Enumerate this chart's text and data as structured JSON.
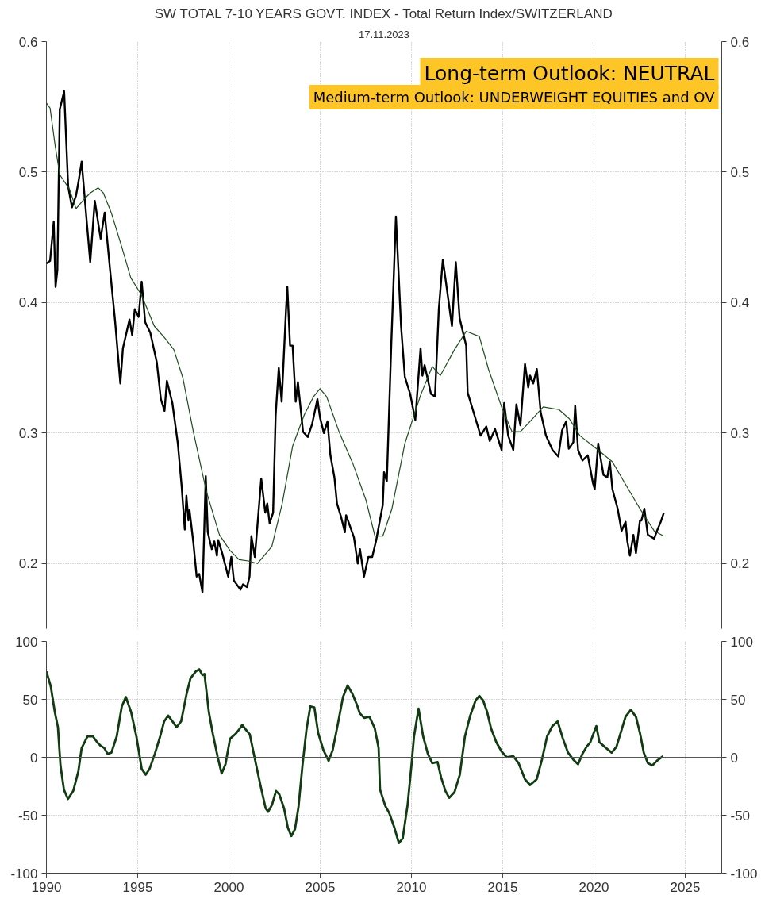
{
  "chart_data": [
    {
      "type": "line",
      "title": "SW TOTAL 7-10 YEARS GOVT. INDEX - Total Return Index/SWITZERLAND",
      "subtitle": "17.11.2023",
      "annotations": [
        "Long-term Outlook: NEUTRAL",
        "Medium-term Outlook: UNDERWEIGHT EQUITIES and OV"
      ],
      "xlim": [
        1990,
        2027
      ],
      "xticks": [
        1990,
        1995,
        2000,
        2005,
        2010,
        2015,
        2020,
        2025
      ],
      "ylim": [
        0.15,
        0.6
      ],
      "yticks": [
        0.2,
        0.3,
        0.4,
        0.5,
        0.6
      ],
      "y2lim": [
        0.15,
        0.6
      ],
      "y2ticks": [
        0.2,
        0.3,
        0.4,
        0.5,
        0.6
      ],
      "grid": true,
      "tick_labels": "y",
      "series": [
        {
          "color": "#000000",
          "x": [
            1990.0,
            1990.2,
            1990.4,
            1990.5,
            1990.6,
            1990.73,
            1990.97,
            1991.19,
            1991.4,
            1991.62,
            1991.76,
            1991.93,
            1992.19,
            1992.4,
            1992.65,
            1992.97,
            1993.19,
            1993.48,
            1993.76,
            1994.05,
            1994.19,
            1994.55,
            1994.7,
            1994.84,
            1995.05,
            1995.22,
            1995.41,
            1995.69,
            1996.05,
            1996.27,
            1996.47,
            1996.6,
            1996.9,
            1997.2,
            1997.41,
            1997.58,
            1997.67,
            1997.78,
            1997.84,
            1998.05,
            1998.23,
            1998.37,
            1998.55,
            1998.73,
            1998.84,
            1999.06,
            1999.2,
            1999.34,
            1999.41,
            1999.63,
            1999.96,
            2000.13,
            2000.27,
            2000.63,
            2000.77,
            2000.99,
            2001.13,
            2001.23,
            2001.42,
            2001.77,
            2001.99,
            2002.1,
            2002.23,
            2002.42,
            2002.56,
            2002.73,
            2002.89,
            2003.13,
            2003.2,
            2003.35,
            2003.49,
            2003.66,
            2003.78,
            2004.06,
            2004.32,
            2004.56,
            2004.85,
            2004.99,
            2005.2,
            2005.4,
            2005.56,
            2005.78,
            2005.92,
            2006.14,
            2006.35,
            2006.42,
            2006.85,
            2007.06,
            2007.18,
            2007.4,
            2007.64,
            2007.85,
            2008.07,
            2008.43,
            2008.5,
            2008.65,
            2008.9,
            2009.15,
            2009.43,
            2009.64,
            2009.93,
            2010.21,
            2010.5,
            2010.6,
            2010.72,
            2011.07,
            2011.29,
            2011.5,
            2011.72,
            2012.22,
            2012.43,
            2012.64,
            2013.0,
            2013.08,
            2013.36,
            2013.79,
            2014.1,
            2014.29,
            2014.58,
            2014.94,
            2015.08,
            2015.3,
            2015.58,
            2015.75,
            2015.97,
            2016.22,
            2016.4,
            2016.5,
            2016.67,
            2016.87,
            2017.08,
            2017.37,
            2017.73,
            2018.05,
            2018.25,
            2018.48,
            2018.62,
            2018.87,
            2018.97,
            2019.13,
            2019.37,
            2019.66,
            2019.94,
            2020.04,
            2020.23,
            2020.52,
            2020.73,
            2020.87,
            2021.01,
            2021.3,
            2021.51,
            2021.73,
            2021.83,
            2021.97,
            2022.16,
            2022.3,
            2022.52,
            2022.6,
            2022.76,
            2022.95,
            2023.3,
            2023.45,
            2023.66,
            2023.83
          ],
          "values": [
            0.43,
            0.432,
            0.462,
            0.412,
            0.425,
            0.548,
            0.562,
            0.489,
            0.473,
            0.482,
            0.493,
            0.508,
            0.465,
            0.431,
            0.478,
            0.449,
            0.469,
            0.426,
            0.386,
            0.338,
            0.365,
            0.387,
            0.375,
            0.395,
            0.389,
            0.416,
            0.385,
            0.377,
            0.354,
            0.326,
            0.317,
            0.34,
            0.323,
            0.292,
            0.259,
            0.226,
            0.252,
            0.233,
            0.241,
            0.216,
            0.19,
            0.192,
            0.178,
            0.267,
            0.224,
            0.211,
            0.217,
            0.206,
            0.218,
            0.208,
            0.19,
            0.205,
            0.187,
            0.18,
            0.184,
            0.182,
            0.19,
            0.221,
            0.205,
            0.265,
            0.239,
            0.246,
            0.231,
            0.239,
            0.314,
            0.35,
            0.324,
            0.395,
            0.412,
            0.367,
            0.367,
            0.324,
            0.339,
            0.301,
            0.297,
            0.307,
            0.326,
            0.312,
            0.3,
            0.309,
            0.283,
            0.266,
            0.246,
            0.236,
            0.224,
            0.237,
            0.22,
            0.2,
            0.211,
            0.19,
            0.205,
            0.205,
            0.218,
            0.245,
            0.27,
            0.263,
            0.37,
            0.466,
            0.382,
            0.343,
            0.33,
            0.31,
            0.365,
            0.344,
            0.352,
            0.33,
            0.328,
            0.395,
            0.433,
            0.382,
            0.431,
            0.388,
            0.367,
            0.331,
            0.318,
            0.298,
            0.305,
            0.294,
            0.303,
            0.287,
            0.323,
            0.298,
            0.287,
            0.322,
            0.306,
            0.353,
            0.335,
            0.344,
            0.338,
            0.349,
            0.316,
            0.298,
            0.287,
            0.282,
            0.302,
            0.309,
            0.288,
            0.293,
            0.321,
            0.287,
            0.279,
            0.283,
            0.262,
            0.257,
            0.292,
            0.268,
            0.266,
            0.278,
            0.257,
            0.242,
            0.225,
            0.232,
            0.217,
            0.206,
            0.222,
            0.208,
            0.233,
            0.233,
            0.242,
            0.222,
            0.219,
            0.225,
            0.232,
            0.239
          ]
        },
        {
          "color": "#1e4d1e",
          "x": [
            1990.0,
            1990.2,
            1990.47,
            1990.73,
            1991.26,
            1991.62,
            1992.05,
            1992.4,
            1992.83,
            1993.12,
            1993.55,
            1994.12,
            1994.62,
            1995.2,
            1995.91,
            1996.48,
            1996.98,
            1997.48,
            1998.05,
            1998.77,
            1999.48,
            2000.06,
            2000.56,
            2001.06,
            2001.56,
            2002.35,
            2002.92,
            2003.49,
            2004.13,
            2004.64,
            2004.99,
            2005.35,
            2006.06,
            2006.78,
            2007.5,
            2008.0,
            2008.43,
            2008.93,
            2009.64,
            2010.5,
            2011.14,
            2011.58,
            2012.36,
            2013.0,
            2013.72,
            2014.22,
            2014.94,
            2015.51,
            2015.97,
            2016.5,
            2017.22,
            2018.08,
            2018.65,
            2019.23,
            2020.23,
            2021.01,
            2021.8,
            2022.52,
            2023.3,
            2023.83
          ],
          "values": [
            0.553,
            0.549,
            0.521,
            0.498,
            0.487,
            0.472,
            0.479,
            0.484,
            0.488,
            0.484,
            0.469,
            0.443,
            0.419,
            0.406,
            0.382,
            0.373,
            0.364,
            0.342,
            0.301,
            0.255,
            0.222,
            0.21,
            0.203,
            0.202,
            0.2,
            0.213,
            0.246,
            0.29,
            0.314,
            0.328,
            0.334,
            0.328,
            0.3,
            0.277,
            0.249,
            0.221,
            0.221,
            0.242,
            0.292,
            0.329,
            0.351,
            0.344,
            0.364,
            0.378,
            0.374,
            0.349,
            0.32,
            0.301,
            0.301,
            0.309,
            0.32,
            0.318,
            0.311,
            0.298,
            0.287,
            0.278,
            0.259,
            0.242,
            0.225,
            0.221
          ]
        }
      ]
    },
    {
      "type": "line",
      "xlim": [
        1990,
        2027
      ],
      "xticks": [
        1990,
        1995,
        2000,
        2005,
        2010,
        2015,
        2020,
        2025
      ],
      "ylim": [
        -100,
        100
      ],
      "yticks": [
        -100,
        -50,
        0,
        50,
        100
      ],
      "y2lim": [
        -100,
        100
      ],
      "y2ticks": [
        -100,
        -50,
        0,
        50,
        100
      ],
      "grid": true,
      "ref_lines": [
        {
          "axis": "y",
          "value": 0,
          "color": "#555555"
        }
      ],
      "series": [
        {
          "color": "#113b11",
          "x": [
            1990.0,
            1990.24,
            1990.46,
            1990.63,
            1990.77,
            1990.96,
            1991.18,
            1991.47,
            1991.75,
            1991.93,
            1992.25,
            1992.55,
            1992.78,
            1992.97,
            1993.17,
            1993.35,
            1993.56,
            1993.85,
            1994.13,
            1994.35,
            1994.64,
            1994.93,
            1995.22,
            1995.44,
            1995.65,
            1995.94,
            1996.23,
            1996.45,
            1996.67,
            1996.95,
            1997.13,
            1997.38,
            1997.67,
            1997.89,
            1998.18,
            1998.37,
            1998.55,
            1998.66,
            1998.9,
            1999.12,
            1999.38,
            1999.6,
            1999.81,
            2000.06,
            2000.35,
            2000.56,
            2000.73,
            2000.92,
            2001.14,
            2001.43,
            2001.71,
            2002.01,
            2002.15,
            2002.36,
            2002.58,
            2002.76,
            2003.02,
            2003.23,
            2003.42,
            2003.62,
            2003.81,
            2004.03,
            2004.25,
            2004.46,
            2004.68,
            2004.89,
            2005.18,
            2005.46,
            2005.68,
            2005.97,
            2006.25,
            2006.5,
            2006.76,
            2007.02,
            2007.17,
            2007.41,
            2007.7,
            2007.99,
            2008.2,
            2008.28,
            2008.57,
            2008.78,
            2009.07,
            2009.31,
            2009.52,
            2009.79,
            2010.0,
            2010.14,
            2010.39,
            2010.64,
            2010.9,
            2011.14,
            2011.43,
            2011.62,
            2011.86,
            2012.07,
            2012.36,
            2012.65,
            2012.93,
            2013.22,
            2013.51,
            2013.72,
            2013.93,
            2014.15,
            2014.36,
            2014.65,
            2014.94,
            2015.22,
            2015.58,
            2015.87,
            2016.22,
            2016.5,
            2016.86,
            2017.15,
            2017.43,
            2017.72,
            2018.01,
            2018.3,
            2018.58,
            2018.87,
            2019.13,
            2019.37,
            2019.59,
            2019.8,
            2020.13,
            2020.3,
            2020.59,
            2020.97,
            2021.23,
            2021.52,
            2021.73,
            2022.02,
            2022.3,
            2022.52,
            2022.73,
            2022.95,
            2023.2,
            2023.45,
            2023.78
          ],
          "values": [
            74,
            61,
            39,
            26,
            -7,
            -28,
            -36,
            -29,
            -12,
            8,
            18,
            18,
            13,
            10,
            8,
            3,
            4,
            18,
            44,
            52,
            39,
            18,
            -10,
            -15,
            -10,
            3,
            18,
            31,
            36,
            30,
            26,
            31,
            54,
            68,
            74,
            76,
            71,
            72,
            39,
            20,
            0.5,
            -14,
            -6,
            16,
            20,
            24,
            28,
            24,
            20,
            -2,
            -23,
            -44,
            -47,
            -41,
            -29,
            -32,
            -44,
            -61,
            -68,
            -62,
            -43,
            -7,
            24,
            44,
            43,
            21,
            6,
            -3,
            6,
            29,
            52,
            62,
            55,
            45,
            38,
            34,
            35,
            25,
            8,
            -28,
            -42,
            -48,
            -61,
            -74,
            -70,
            -41,
            -7,
            18,
            42,
            18,
            3,
            -5,
            -4,
            -17,
            -29,
            -35,
            -30,
            -15,
            18,
            36,
            49,
            53,
            49,
            39,
            25,
            13,
            5,
            0,
            1,
            -5,
            -19,
            -24,
            -19,
            -2,
            18,
            27,
            31,
            16,
            4,
            -2,
            -6,
            3,
            9,
            13,
            27,
            13,
            9,
            4,
            9,
            24,
            35,
            41,
            35,
            21,
            4,
            -5,
            -7,
            -3,
            1
          ]
        }
      ]
    }
  ]
}
